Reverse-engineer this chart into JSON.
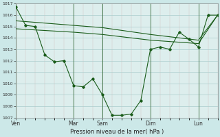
{
  "background_color": "#cce8e8",
  "grid_color": "#aacccc",
  "plot_bg": "#ddeeed",
  "line_color": "#1a5c1a",
  "title": "Pression niveau de la mer( hPa )",
  "ylim": [
    1007,
    1017
  ],
  "yticks": [
    1007,
    1008,
    1009,
    1010,
    1011,
    1012,
    1013,
    1014,
    1015,
    1016,
    1017
  ],
  "day_labels": [
    "Ven",
    "Mar",
    "Sam",
    "Dim",
    "Lun"
  ],
  "day_positions": [
    0,
    12,
    18,
    28,
    38
  ],
  "xlim": [
    0,
    42
  ],
  "main_line_x": [
    0,
    2,
    4,
    6,
    8,
    10,
    12,
    14,
    16,
    18,
    20,
    22,
    24,
    26,
    28,
    30,
    32,
    34,
    36,
    38,
    40,
    42
  ],
  "main_line_y": [
    1016.7,
    1015.1,
    1015.0,
    1012.5,
    1011.9,
    1012.0,
    1009.8,
    1009.7,
    1010.4,
    1009.0,
    1007.2,
    1007.2,
    1007.3,
    1008.5,
    1013.0,
    1013.2,
    1013.0,
    1014.5,
    1013.9,
    1013.2,
    1016.0,
    1016.0
  ],
  "flat_line_x": [
    0,
    12,
    18,
    28,
    38,
    42
  ],
  "flat_line_y": [
    1014.8,
    1014.5,
    1014.3,
    1013.8,
    1013.5,
    1016.0
  ],
  "extra_line_x": [
    0,
    12,
    18,
    28,
    38,
    42
  ],
  "extra_line_y": [
    1015.5,
    1015.1,
    1014.9,
    1014.3,
    1013.8,
    1016.0
  ]
}
